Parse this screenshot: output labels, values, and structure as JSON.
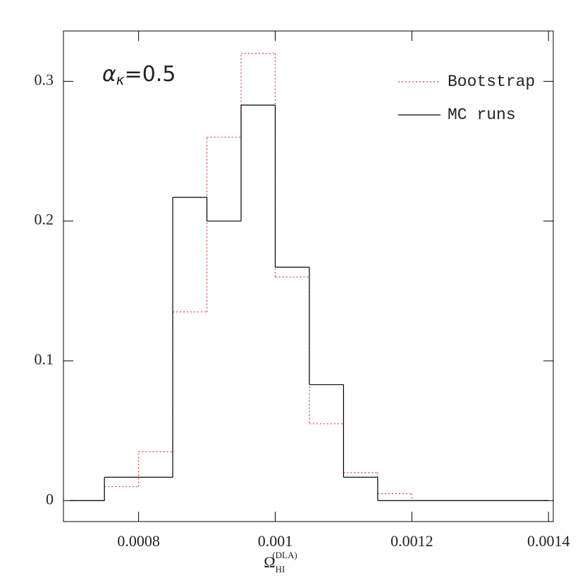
{
  "chart_data": {
    "type": "histogram",
    "xlabel": {
      "main": "Ω",
      "sub": "HI",
      "sup": "(DLA)"
    },
    "annotation": {
      "main": "α",
      "sub": "κ",
      "rest": "=0.5"
    },
    "bins": [
      0.0007,
      0.00075,
      0.0008,
      0.00085,
      0.0009,
      0.00095,
      0.001,
      0.00105,
      0.0011,
      0.00115,
      0.0012,
      0.00125,
      0.0013,
      0.00135,
      0.0014
    ],
    "series": [
      {
        "name": "Bootstrap",
        "color": "#e8383d",
        "dash": "dotted",
        "values": [
          0,
          0.01,
          0.035,
          0.135,
          0.26,
          0.32,
          0.16,
          0.055,
          0.02,
          0.005,
          0,
          0,
          0,
          0
        ]
      },
      {
        "name": "MC runs",
        "color": "#000000",
        "dash": "solid",
        "values": [
          0,
          0.0167,
          0.0167,
          0.217,
          0.2,
          0.283,
          0.167,
          0.083,
          0.0167,
          0,
          0,
          0,
          0,
          0
        ]
      }
    ],
    "xlim": [
      0.00069,
      0.001407
    ],
    "ylim": [
      -0.015,
      0.336
    ],
    "xticks": [
      0.0008,
      0.001,
      0.0012,
      0.0014
    ],
    "yticks": [
      0,
      0.1,
      0.2,
      0.3
    ],
    "legend": "upper right",
    "grid": false
  }
}
